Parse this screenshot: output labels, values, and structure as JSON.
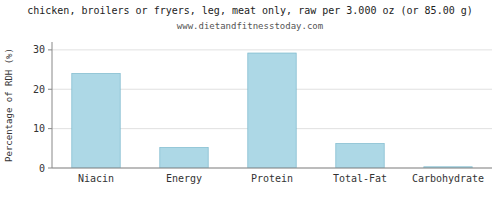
{
  "chart_data": {
    "type": "bar",
    "title": "chicken, broilers or fryers, leg, meat only, raw per 3.000 oz (or 85.00 g)",
    "subtitle": "www.dietandfitnesstoday.com",
    "categories": [
      "Niacin",
      "Energy",
      "Protein",
      "Total-Fat",
      "Carbohydrate"
    ],
    "values": [
      24.0,
      5.2,
      29.2,
      6.2,
      0.3
    ],
    "color": "#add8e6",
    "ylabel": "Percentage of RDH (%)",
    "ylim": [
      0,
      32
    ],
    "yticks": [
      0,
      10,
      20,
      30
    ],
    "grid": true
  }
}
